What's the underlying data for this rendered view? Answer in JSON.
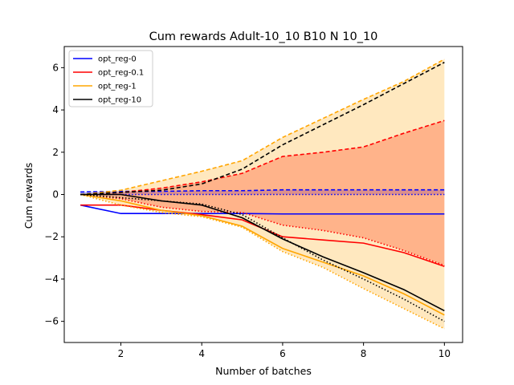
{
  "chart_data": {
    "type": "line",
    "title": "Cum rewards Adult-10_10 B10 N 10_10",
    "xlabel": "Number of batches",
    "ylabel": "Cum rewards",
    "xlim": [
      0.6,
      10.45
    ],
    "ylim": [
      -7.0,
      7.0
    ],
    "xticks": [
      2,
      4,
      6,
      8,
      10
    ],
    "yticks": [
      -6,
      -4,
      -2,
      0,
      2,
      4,
      6
    ],
    "grid": false,
    "legend_position": "top-left",
    "x": [
      1,
      2,
      3,
      4,
      5,
      6,
      7,
      8,
      9,
      10
    ],
    "series": [
      {
        "name": "opt_reg-0",
        "color": "#0000ff",
        "mean": [
          -0.5,
          -0.9,
          -0.9,
          -0.9,
          -0.9,
          -0.92,
          -0.92,
          -0.92,
          -0.92,
          -0.92
        ],
        "upper": [
          0.12,
          0.15,
          0.15,
          0.18,
          0.18,
          0.22,
          0.22,
          0.22,
          0.22,
          0.22
        ],
        "lower": [
          0.0,
          0.0,
          0.0,
          0.0,
          0.0,
          0.0,
          0.0,
          0.0,
          0.0,
          0.0
        ],
        "fill": "rgba(0,0,255,0.25)"
      },
      {
        "name": "opt_reg-0.1",
        "color": "#ff0000",
        "mean": [
          -0.5,
          -0.5,
          -0.75,
          -0.95,
          -1.2,
          -2.0,
          -2.15,
          -2.3,
          -2.75,
          -3.4
        ],
        "upper": [
          0.0,
          0.1,
          0.3,
          0.6,
          1.0,
          1.8,
          2.0,
          2.25,
          2.9,
          3.5
        ],
        "lower": [
          0.0,
          -0.2,
          -0.6,
          -0.8,
          -0.85,
          -1.45,
          -1.7,
          -2.05,
          -2.65,
          -3.35
        ],
        "fill": "rgba(255,0,0,0.28)"
      },
      {
        "name": "opt_reg-1",
        "color": "#ffa500",
        "mean": [
          0.0,
          -0.3,
          -0.75,
          -1.0,
          -1.5,
          -2.55,
          -3.2,
          -3.85,
          -4.7,
          -5.7
        ],
        "upper": [
          0.0,
          0.2,
          0.65,
          1.1,
          1.6,
          2.7,
          3.6,
          4.5,
          5.35,
          6.4
        ],
        "lower": [
          0.0,
          -0.5,
          -0.85,
          -1.05,
          -1.55,
          -2.7,
          -3.45,
          -4.45,
          -5.4,
          -6.35
        ],
        "fill": "rgba(255,165,0,0.25)"
      },
      {
        "name": "opt_reg-10",
        "color": "#000000",
        "mean": [
          0.0,
          0.0,
          -0.3,
          -0.5,
          -1.1,
          -2.1,
          -2.95,
          -3.7,
          -4.5,
          -5.5
        ],
        "upper": [
          0.0,
          0.1,
          0.2,
          0.5,
          1.2,
          2.35,
          3.3,
          4.25,
          5.25,
          6.25
        ],
        "lower": [
          0.0,
          -0.15,
          -0.3,
          -0.45,
          -0.95,
          -2.05,
          -3.1,
          -4.0,
          -4.95,
          -6.0
        ],
        "fill": "rgba(0,0,0,0.0)"
      }
    ]
  }
}
